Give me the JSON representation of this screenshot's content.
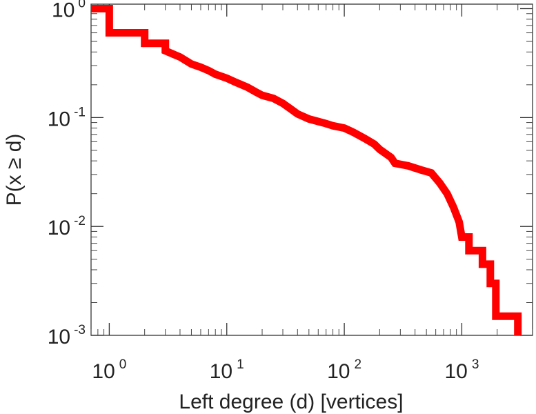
{
  "chart_data": {
    "type": "line",
    "step": true,
    "xscale": "log",
    "yscale": "log",
    "xlabel": "Left degree (d) [vertices]",
    "ylabel": "P(x ≥ d)",
    "xlim": [
      0.7,
      4000
    ],
    "ylim": [
      0.001,
      1.1
    ],
    "grid": false,
    "x_ticks": [
      {
        "base": "10",
        "exp": "0",
        "value": 1
      },
      {
        "base": "10",
        "exp": "1",
        "value": 10
      },
      {
        "base": "10",
        "exp": "2",
        "value": 100
      },
      {
        "base": "10",
        "exp": "3",
        "value": 1000
      }
    ],
    "y_ticks": [
      {
        "base": "10",
        "exp": "0",
        "value": 1
      },
      {
        "base": "10",
        "exp": "-1",
        "value": 0.1
      },
      {
        "base": "10",
        "exp": "-2",
        "value": 0.01
      },
      {
        "base": "10",
        "exp": "-3",
        "value": 0.001
      }
    ],
    "series": [
      {
        "color": "#ff0000",
        "points": [
          [
            0.7,
            1.0
          ],
          [
            1,
            1.0
          ],
          [
            1,
            0.6
          ],
          [
            2,
            0.6
          ],
          [
            2,
            0.48
          ],
          [
            3,
            0.48
          ],
          [
            3,
            0.41
          ],
          [
            4,
            0.36
          ],
          [
            5,
            0.31
          ],
          [
            6,
            0.29
          ],
          [
            7,
            0.27
          ],
          [
            8,
            0.25
          ],
          [
            10,
            0.23
          ],
          [
            12,
            0.21
          ],
          [
            15,
            0.19
          ],
          [
            18,
            0.17
          ],
          [
            20,
            0.16
          ],
          [
            25,
            0.15
          ],
          [
            30,
            0.135
          ],
          [
            35,
            0.12
          ],
          [
            40,
            0.108
          ],
          [
            50,
            0.097
          ],
          [
            60,
            0.092
          ],
          [
            70,
            0.088
          ],
          [
            80,
            0.084
          ],
          [
            100,
            0.08
          ],
          [
            120,
            0.073
          ],
          [
            150,
            0.064
          ],
          [
            180,
            0.057
          ],
          [
            200,
            0.051
          ],
          [
            250,
            0.043
          ],
          [
            270,
            0.038
          ],
          [
            350,
            0.036
          ],
          [
            450,
            0.033
          ],
          [
            550,
            0.031
          ],
          [
            650,
            0.025
          ],
          [
            750,
            0.02
          ],
          [
            850,
            0.015
          ],
          [
            950,
            0.011
          ],
          [
            1000,
            0.008
          ],
          [
            1150,
            0.008
          ],
          [
            1150,
            0.006
          ],
          [
            1500,
            0.006
          ],
          [
            1500,
            0.0045
          ],
          [
            1750,
            0.0045
          ],
          [
            1750,
            0.003
          ],
          [
            1950,
            0.003
          ],
          [
            1950,
            0.0015
          ],
          [
            3000,
            0.0015
          ],
          [
            3000,
            0.001
          ]
        ]
      }
    ]
  }
}
